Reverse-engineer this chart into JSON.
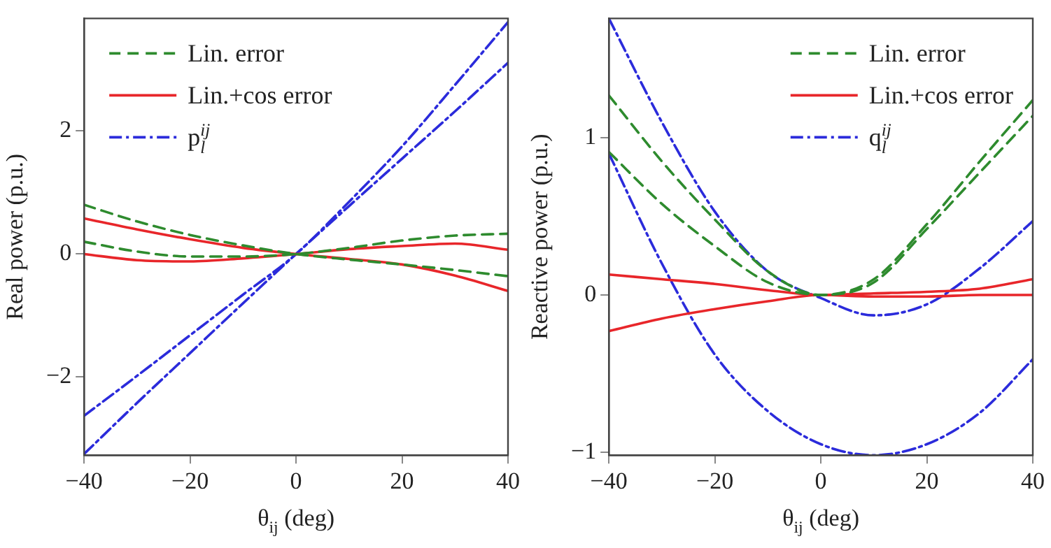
{
  "chart_data": [
    {
      "type": "line",
      "xlabel": "θ$_{ij}$ (deg)",
      "ylabel": "Real power (p.u.)",
      "x": [
        -40,
        -30,
        -20,
        -10,
        0,
        10,
        20,
        30,
        40
      ],
      "xlim": [
        -40,
        40
      ],
      "xticks": [
        -40,
        -20,
        0,
        20,
        40
      ],
      "ylim": [
        -3.27,
        3.83
      ],
      "yticks": [
        -2,
        0,
        2
      ],
      "grid": false,
      "legend": "top left",
      "marker": "none",
      "series": [
        {
          "name": "Lin. error",
          "color": "#2e8b2e",
          "line_style": "dashed",
          "values": [
            0.8,
            0.53,
            0.31,
            0.14,
            0,
            -0.09,
            -0.17,
            -0.26,
            -0.36
          ]
        },
        {
          "color": "#2e8b2e",
          "line_style": "dashed",
          "values": [
            0.2,
            0.04,
            -0.04,
            -0.04,
            0,
            0.1,
            0.22,
            0.3,
            0.33
          ]
        },
        {
          "name": "Lin.+cos error",
          "color": "#e8262a",
          "line_style": "solid",
          "values": [
            0.58,
            0.4,
            0.24,
            0.1,
            0,
            -0.08,
            -0.17,
            -0.35,
            -0.6
          ]
        },
        {
          "color": "#e8262a",
          "line_style": "solid",
          "values": [
            0,
            -0.1,
            -0.12,
            -0.07,
            0,
            0.08,
            0.13,
            0.17,
            0.07
          ]
        },
        {
          "name": "p$_{l}$$^{ij}$",
          "color": "#2b2bdb",
          "line_style": "dashdot",
          "values": [
            -2.63,
            -1.98,
            -1.32,
            -0.66,
            0,
            0.85,
            1.75,
            2.75,
            3.77
          ]
        },
        {
          "color": "#2b2bdb",
          "line_style": "dashdot",
          "values": [
            -3.25,
            -2.42,
            -1.61,
            -0.8,
            0,
            0.78,
            1.55,
            2.32,
            3.11
          ]
        }
      ]
    },
    {
      "type": "line",
      "xlabel": "θ$_{ij}$ (deg)",
      "ylabel": "Reactive power (p.u.)",
      "x": [
        -40,
        -30,
        -20,
        -10,
        0,
        10,
        20,
        30,
        40
      ],
      "xlim": [
        -40,
        40
      ],
      "xticks": [
        -40,
        -20,
        0,
        20,
        40
      ],
      "ylim": [
        -1.02,
        1.76
      ],
      "yticks": [
        -1,
        0,
        1
      ],
      "grid": false,
      "legend": "top right",
      "marker": "none",
      "series": [
        {
          "name": "Lin. error",
          "color": "#2e8b2e",
          "line_style": "dashed",
          "values": [
            1.27,
            0.85,
            0.48,
            0.15,
            0,
            0.1,
            0.45,
            0.85,
            1.24
          ]
        },
        {
          "color": "#2e8b2e",
          "line_style": "dashed",
          "values": [
            0.91,
            0.58,
            0.31,
            0.08,
            0,
            0.08,
            0.42,
            0.78,
            1.14
          ]
        },
        {
          "name": "Lin.+cos error",
          "color": "#e8262a",
          "line_style": "solid",
          "values": [
            0.13,
            0.1,
            0.07,
            0.03,
            0,
            0.01,
            0.02,
            0.04,
            0.1
          ]
        },
        {
          "color": "#e8262a",
          "line_style": "solid",
          "values": [
            -0.23,
            -0.15,
            -0.09,
            -0.04,
            0,
            -0.01,
            -0.01,
            0,
            0
          ]
        },
        {
          "name": "q$_{l}$$^{ij}$",
          "color": "#2b2bdb",
          "line_style": "dashdot",
          "values": [
            1.76,
            1.1,
            0.53,
            0.15,
            -0.02,
            -0.13,
            -0.06,
            0.17,
            0.47
          ]
        },
        {
          "color": "#2b2bdb",
          "line_style": "dashdot",
          "values": [
            0.9,
            0.2,
            -0.38,
            -0.74,
            -0.95,
            -1.02,
            -0.95,
            -0.75,
            -0.41
          ]
        }
      ]
    }
  ]
}
